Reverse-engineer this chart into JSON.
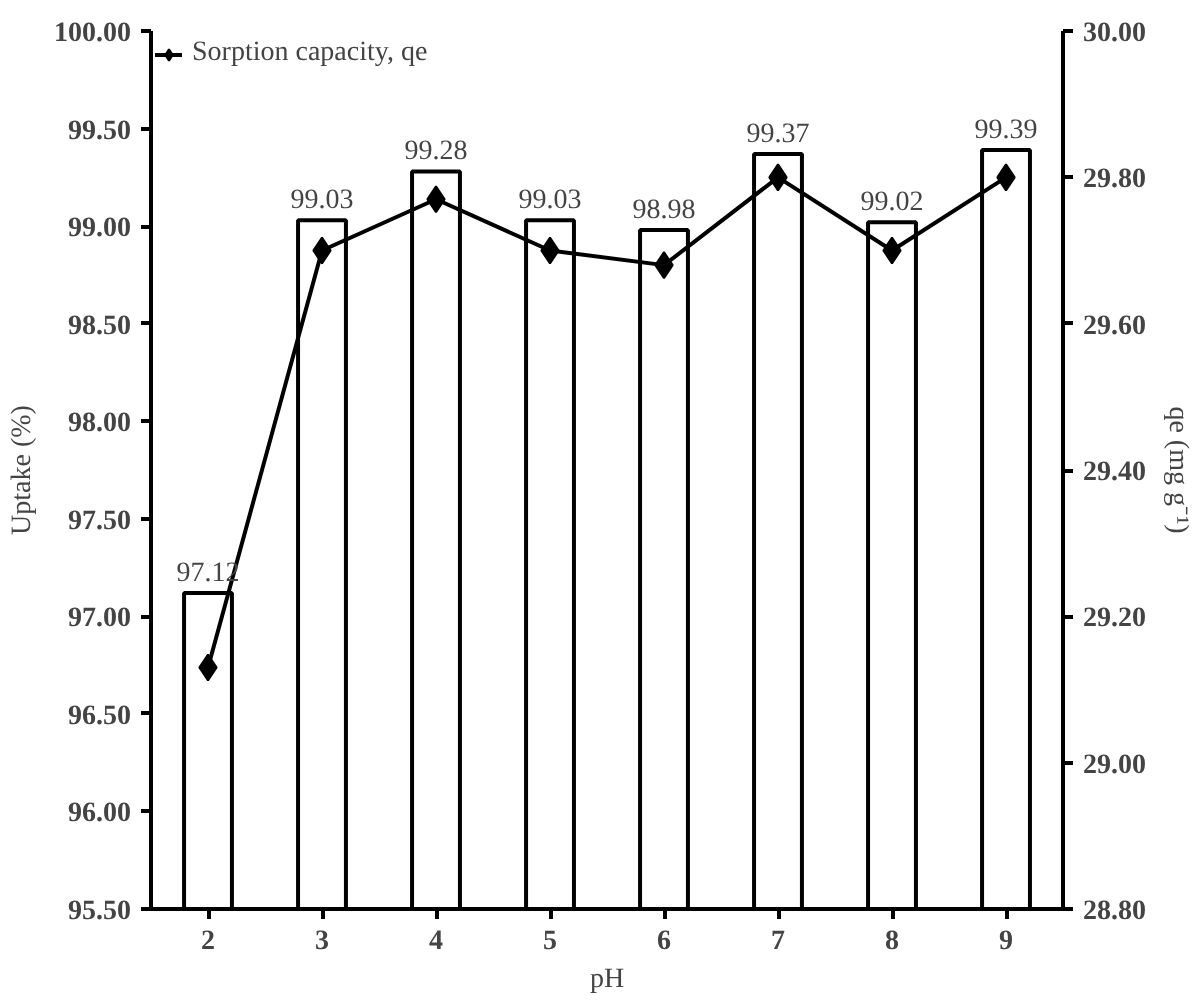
{
  "chart_data": {
    "type": "bar",
    "xlabel": "pH",
    "ylabel": "Uptake (%)",
    "y2label": "qe (mg g⁻¹)",
    "categories": [
      "2",
      "3",
      "4",
      "5",
      "6",
      "7",
      "8",
      "9"
    ],
    "ylim": [
      95.5,
      100
    ],
    "yticks": [
      {
        "value": 95.5,
        "label": "95.50"
      },
      {
        "value": 96,
        "label": "96.00"
      },
      {
        "value": 96.5,
        "label": "96.50"
      },
      {
        "value": 97,
        "label": "97.00"
      },
      {
        "value": 97.5,
        "label": "97.50"
      },
      {
        "value": 98,
        "label": "98.00"
      },
      {
        "value": 98.5,
        "label": "98.50"
      },
      {
        "value": 99,
        "label": "99.00"
      },
      {
        "value": 99.5,
        "label": "99.50"
      },
      {
        "value": 100,
        "label": "100.00"
      }
    ],
    "y2lim": [
      28.8,
      30
    ],
    "y2ticks": [
      {
        "value": 28.8,
        "label": "28.80"
      },
      {
        "value": 29,
        "label": "29.00"
      },
      {
        "value": 29.2,
        "label": "29.20"
      },
      {
        "value": 29.4,
        "label": "29.40"
      },
      {
        "value": 29.6,
        "label": "29.60"
      },
      {
        "value": 29.8,
        "label": "29.80"
      },
      {
        "value": 30,
        "label": "30.00"
      }
    ],
    "legend": "top left",
    "grid": false,
    "series": [
      {
        "color": "#ffffff",
        "values": [
          97.12,
          99.03,
          99.28,
          99.03,
          98.98,
          99.37,
          99.02,
          99.39
        ],
        "value_labels": [
          "97.12",
          "99.03",
          "99.28",
          "99.03",
          "98.98",
          "99.37",
          "99.02",
          "99.39"
        ]
      },
      {
        "type": "line",
        "name": "Sorption capacity, qe",
        "axis": "y2",
        "color": "#000000",
        "marker": "diamond",
        "line_style": "solid",
        "values": [
          29.13,
          29.7,
          29.77,
          29.7,
          29.68,
          29.8,
          29.7,
          29.8
        ]
      }
    ]
  }
}
